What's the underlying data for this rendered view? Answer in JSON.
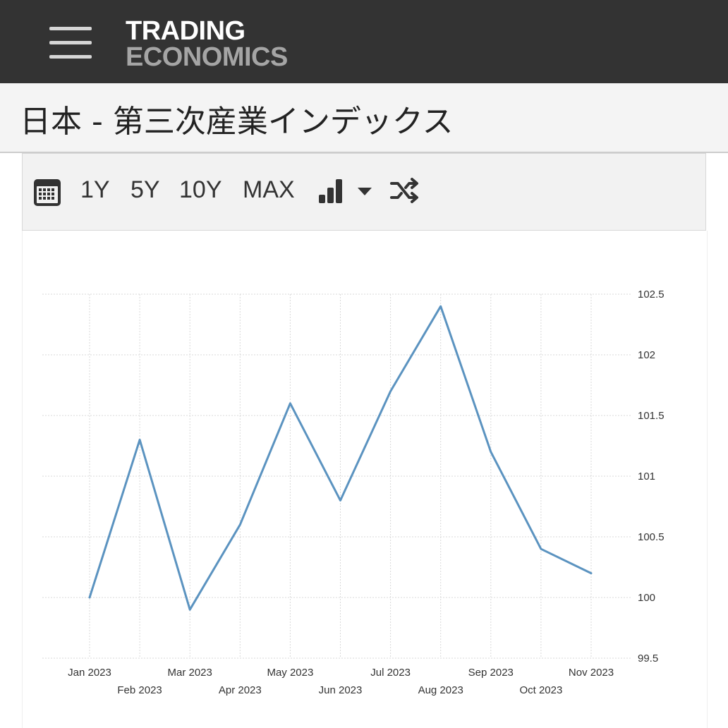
{
  "header": {
    "logo_line1": "TRADING",
    "logo_line2": "ECONOMICS",
    "menu_icon": "hamburger-menu-icon"
  },
  "page": {
    "title": "日本 - 第三次産業インデックス"
  },
  "toolbar": {
    "calendar_icon": "calendar-icon",
    "ranges": [
      "1Y",
      "5Y",
      "10Y",
      "MAX"
    ],
    "chart_type_icon": "bar-chart-icon",
    "dropdown_icon": "caret-down-icon",
    "compare_icon": "shuffle-icon"
  },
  "colors": {
    "line": "#5b93c0",
    "header_bg": "#333333",
    "grid": "#d9d9d9"
  },
  "chart_data": {
    "type": "line",
    "title": "",
    "xlabel": "",
    "ylabel": "",
    "categories": [
      "Jan 2023",
      "Feb 2023",
      "Mar 2023",
      "Apr 2023",
      "May 2023",
      "Jun 2023",
      "Jul 2023",
      "Aug 2023",
      "Sep 2023",
      "Oct 2023",
      "Nov 2023"
    ],
    "values": [
      100.0,
      101.3,
      99.9,
      100.6,
      101.6,
      100.8,
      101.7,
      102.4,
      101.2,
      100.4,
      100.2
    ],
    "ylim": [
      99.5,
      102.5
    ],
    "yticks": [
      "102.5",
      "102",
      "101.5",
      "101",
      "100.5",
      "100",
      "99.5"
    ],
    "y_axis_position": "right",
    "grid": true,
    "legend": "none"
  }
}
